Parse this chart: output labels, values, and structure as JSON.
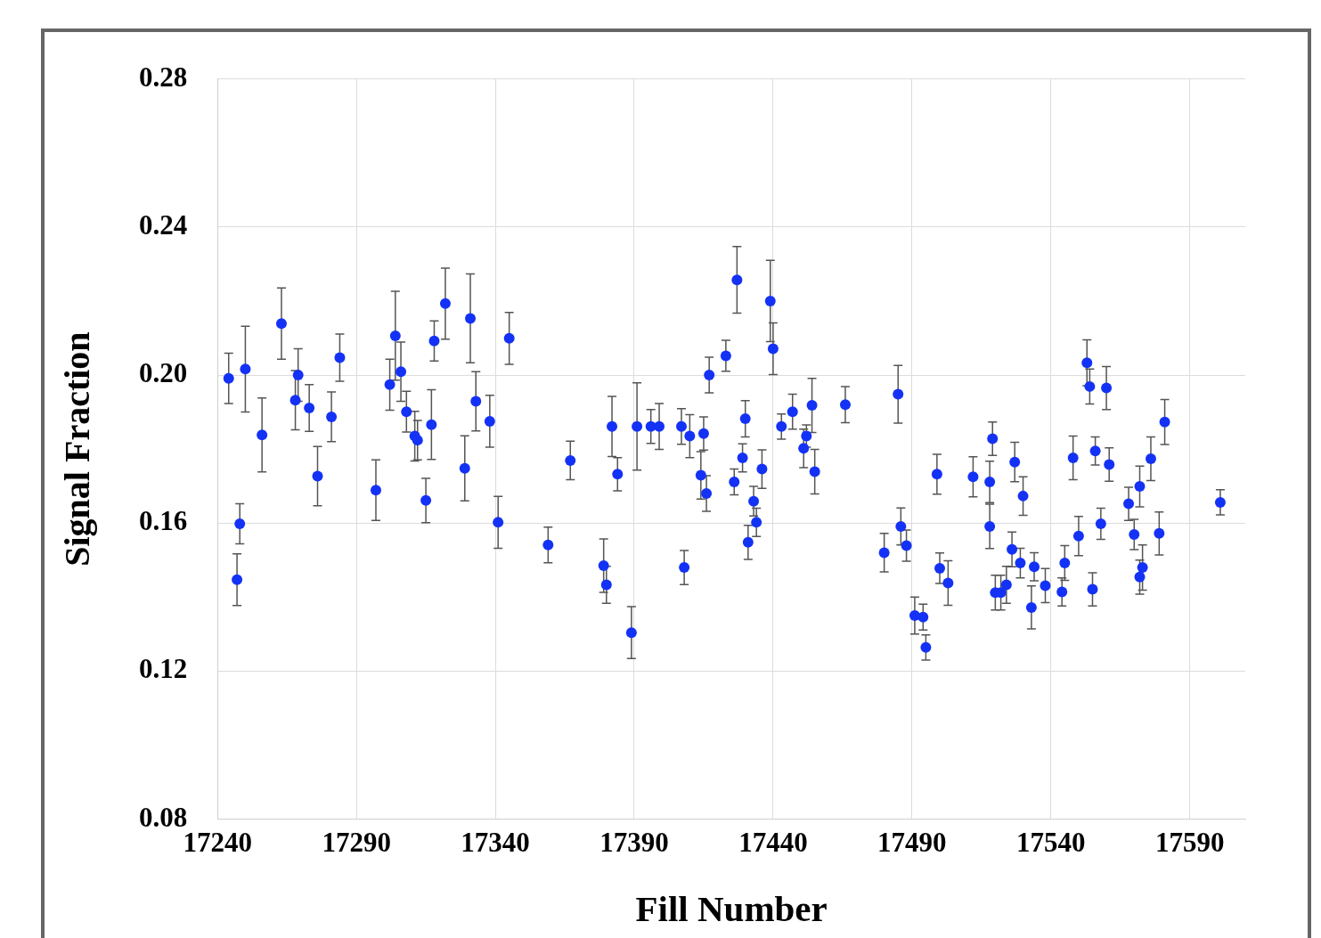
{
  "chart_data": {
    "type": "scatter",
    "xlabel": "Fill Number",
    "ylabel": "Signal Fraction",
    "color": "#1432f5",
    "marker": "circle",
    "grid": true,
    "legend": false,
    "xlim": [
      17240,
      17610
    ],
    "xticks": [
      17240,
      17290,
      17340,
      17390,
      17440,
      17490,
      17540,
      17590
    ],
    "ylim": [
      0.08,
      0.28
    ],
    "yticks": [
      {
        "value": 0.08,
        "label": "0.08"
      },
      {
        "value": 0.12,
        "label": "0.12"
      },
      {
        "value": 0.16,
        "label": "0.16"
      },
      {
        "value": 0.2,
        "label": "0.20"
      },
      {
        "value": 0.24,
        "label": "0.24"
      },
      {
        "value": 0.28,
        "label": "0.28"
      }
    ],
    "x": [
      17244,
      17247,
      17248,
      17250,
      17256,
      17263,
      17268,
      17269,
      17273,
      17276,
      17281,
      17284,
      17297,
      17302,
      17304,
      17306,
      17308,
      17311,
      17312,
      17315,
      17317,
      17318,
      17322,
      17329,
      17331,
      17333,
      17338,
      17341,
      17345,
      17359,
      17367,
      17379,
      17380,
      17382,
      17384,
      17389,
      17391,
      17396,
      17399,
      17407,
      17408,
      17410,
      17414,
      17415,
      17416,
      17417,
      17423,
      17426,
      17427,
      17429,
      17430,
      17431,
      17433,
      17434,
      17436,
      17439,
      17440,
      17443,
      17447,
      17451,
      17452,
      17454,
      17455,
      17466,
      17480,
      17485,
      17486,
      17488,
      17491,
      17494,
      17495,
      17499,
      17500,
      17503,
      17512,
      17518,
      17518,
      17519,
      17520,
      17522,
      17524,
      17526,
      17527,
      17529,
      17530,
      17533,
      17534,
      17538,
      17544,
      17545,
      17548,
      17550,
      17553,
      17554,
      17555,
      17556,
      17558,
      17560,
      17561,
      17568,
      17570,
      17572,
      17573,
      17572,
      17576,
      17579,
      17581,
      17601
    ],
    "values": [
      0.1991,
      0.1447,
      0.1598,
      0.2016,
      0.1838,
      0.2139,
      0.1932,
      0.2,
      0.1911,
      0.1727,
      0.1887,
      0.2047,
      0.1689,
      0.1974,
      0.2106,
      0.2009,
      0.1901,
      0.1835,
      0.1824,
      0.1661,
      0.1866,
      0.2092,
      0.2193,
      0.1748,
      0.2153,
      0.1929,
      0.1875,
      0.1602,
      0.2099,
      0.1541,
      0.1769,
      0.1485,
      0.1433,
      0.1861,
      0.1732,
      0.1304,
      0.1861,
      0.1861,
      0.1861,
      0.1861,
      0.148,
      0.1835,
      0.1729,
      0.1842,
      0.168,
      0.2,
      0.2052,
      0.1711,
      0.2257,
      0.1776,
      0.1882,
      0.1548,
      0.1659,
      0.1602,
      0.1746,
      0.22,
      0.2071,
      0.1861,
      0.1901,
      0.1802,
      0.1835,
      0.1918,
      0.1739,
      0.192,
      0.152,
      0.1948,
      0.1591,
      0.1539,
      0.135,
      0.1346,
      0.1264,
      0.1732,
      0.1478,
      0.1438,
      0.1725,
      0.1711,
      0.1591,
      0.1828,
      0.1412,
      0.1412,
      0.1433,
      0.1529,
      0.1765,
      0.1492,
      0.1673,
      0.1372,
      0.1482,
      0.1431,
      0.1414,
      0.1492,
      0.1776,
      0.1565,
      0.2033,
      0.1969,
      0.1421,
      0.1795,
      0.1598,
      0.1965,
      0.1758,
      0.1652,
      0.1569,
      0.1699,
      0.148,
      0.1454,
      0.1774,
      0.1572,
      0.1873,
      0.1656
    ],
    "errors": [
      0.0068,
      0.007,
      0.0054,
      0.0116,
      0.01,
      0.0096,
      0.008,
      0.0071,
      0.0063,
      0.008,
      0.0067,
      0.0064,
      0.0082,
      0.0069,
      0.012,
      0.008,
      0.0055,
      0.0067,
      0.0053,
      0.006,
      0.0094,
      0.0054,
      0.0096,
      0.0088,
      0.012,
      0.008,
      0.007,
      0.007,
      0.007,
      0.0048,
      0.0052,
      0.0072,
      0.005,
      0.0081,
      0.0045,
      0.007,
      0.0118,
      0.0046,
      0.0062,
      0.0048,
      0.0046,
      0.0058,
      0.0064,
      0.0045,
      0.0048,
      0.0048,
      0.0042,
      0.0035,
      0.009,
      0.0038,
      0.0049,
      0.0046,
      0.004,
      0.0038,
      0.0052,
      0.011,
      0.007,
      0.0034,
      0.0047,
      0.0052,
      0.003,
      0.0073,
      0.006,
      0.0049,
      0.0052,
      0.0078,
      0.005,
      0.0042,
      0.005,
      0.0035,
      0.0034,
      0.0054,
      0.0041,
      0.006,
      0.0054,
      0.0056,
      0.006,
      0.0045,
      0.0047,
      0.0047,
      0.005,
      0.0047,
      0.0053,
      0.004,
      0.0052,
      0.0058,
      0.0038,
      0.0046,
      0.0038,
      0.0047,
      0.0059,
      0.0053,
      0.0062,
      0.0047,
      0.0045,
      0.0038,
      0.0042,
      0.0058,
      0.0045,
      0.0045,
      0.0041,
      0.0055,
      0.0061,
      0.0046,
      0.0059,
      0.0058,
      0.0061,
      0.0034
    ]
  }
}
